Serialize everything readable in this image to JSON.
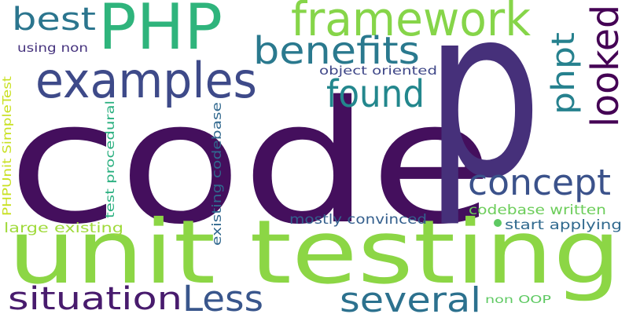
{
  "words": [
    {
      "text": "code",
      "color": "#440f5d"
    },
    {
      "text": "p",
      "color": "#46307a"
    },
    {
      "text": "unit testing",
      "color": "#8cd645"
    },
    {
      "text": "PHP",
      "color": "#2fb47c"
    },
    {
      "text": "framework",
      "color": "#86d549"
    },
    {
      "text": "examples",
      "color": "#3e4a89"
    },
    {
      "text": "benefits",
      "color": "#2a798e"
    },
    {
      "text": "found",
      "color": "#23878d"
    },
    {
      "text": "best",
      "color": "#2b758e"
    },
    {
      "text": "looked",
      "color": "#440154"
    },
    {
      "text": "phpt",
      "color": "#26818e"
    },
    {
      "text": "concept",
      "color": "#3b528b"
    },
    {
      "text": "situation",
      "color": "#481b6d"
    },
    {
      "text": "Less",
      "color": "#39568c"
    },
    {
      "text": "several",
      "color": "#2c718e"
    },
    {
      "text": "using non",
      "color": "#46337e"
    },
    {
      "text": "object oriented",
      "color": "#3f4788"
    },
    {
      "text": "PHPUnit SimpleTest",
      "color": "#c8e020"
    },
    {
      "text": "test procedural",
      "color": "#29af7f"
    },
    {
      "text": "existing codebase",
      "color": "#31688e"
    },
    {
      "text": "mostly convinced",
      "color": "#345f8d"
    },
    {
      "text": "codebase written",
      "color": "#6ccd5a"
    },
    {
      "text": "large existing",
      "color": "#9fda3a"
    },
    {
      "text": "start applying",
      "color": "#30698e"
    },
    {
      "text": "non OOP",
      "color": "#5ec962"
    },
    {
      "text": "dot",
      "color": "#5ec962"
    }
  ]
}
